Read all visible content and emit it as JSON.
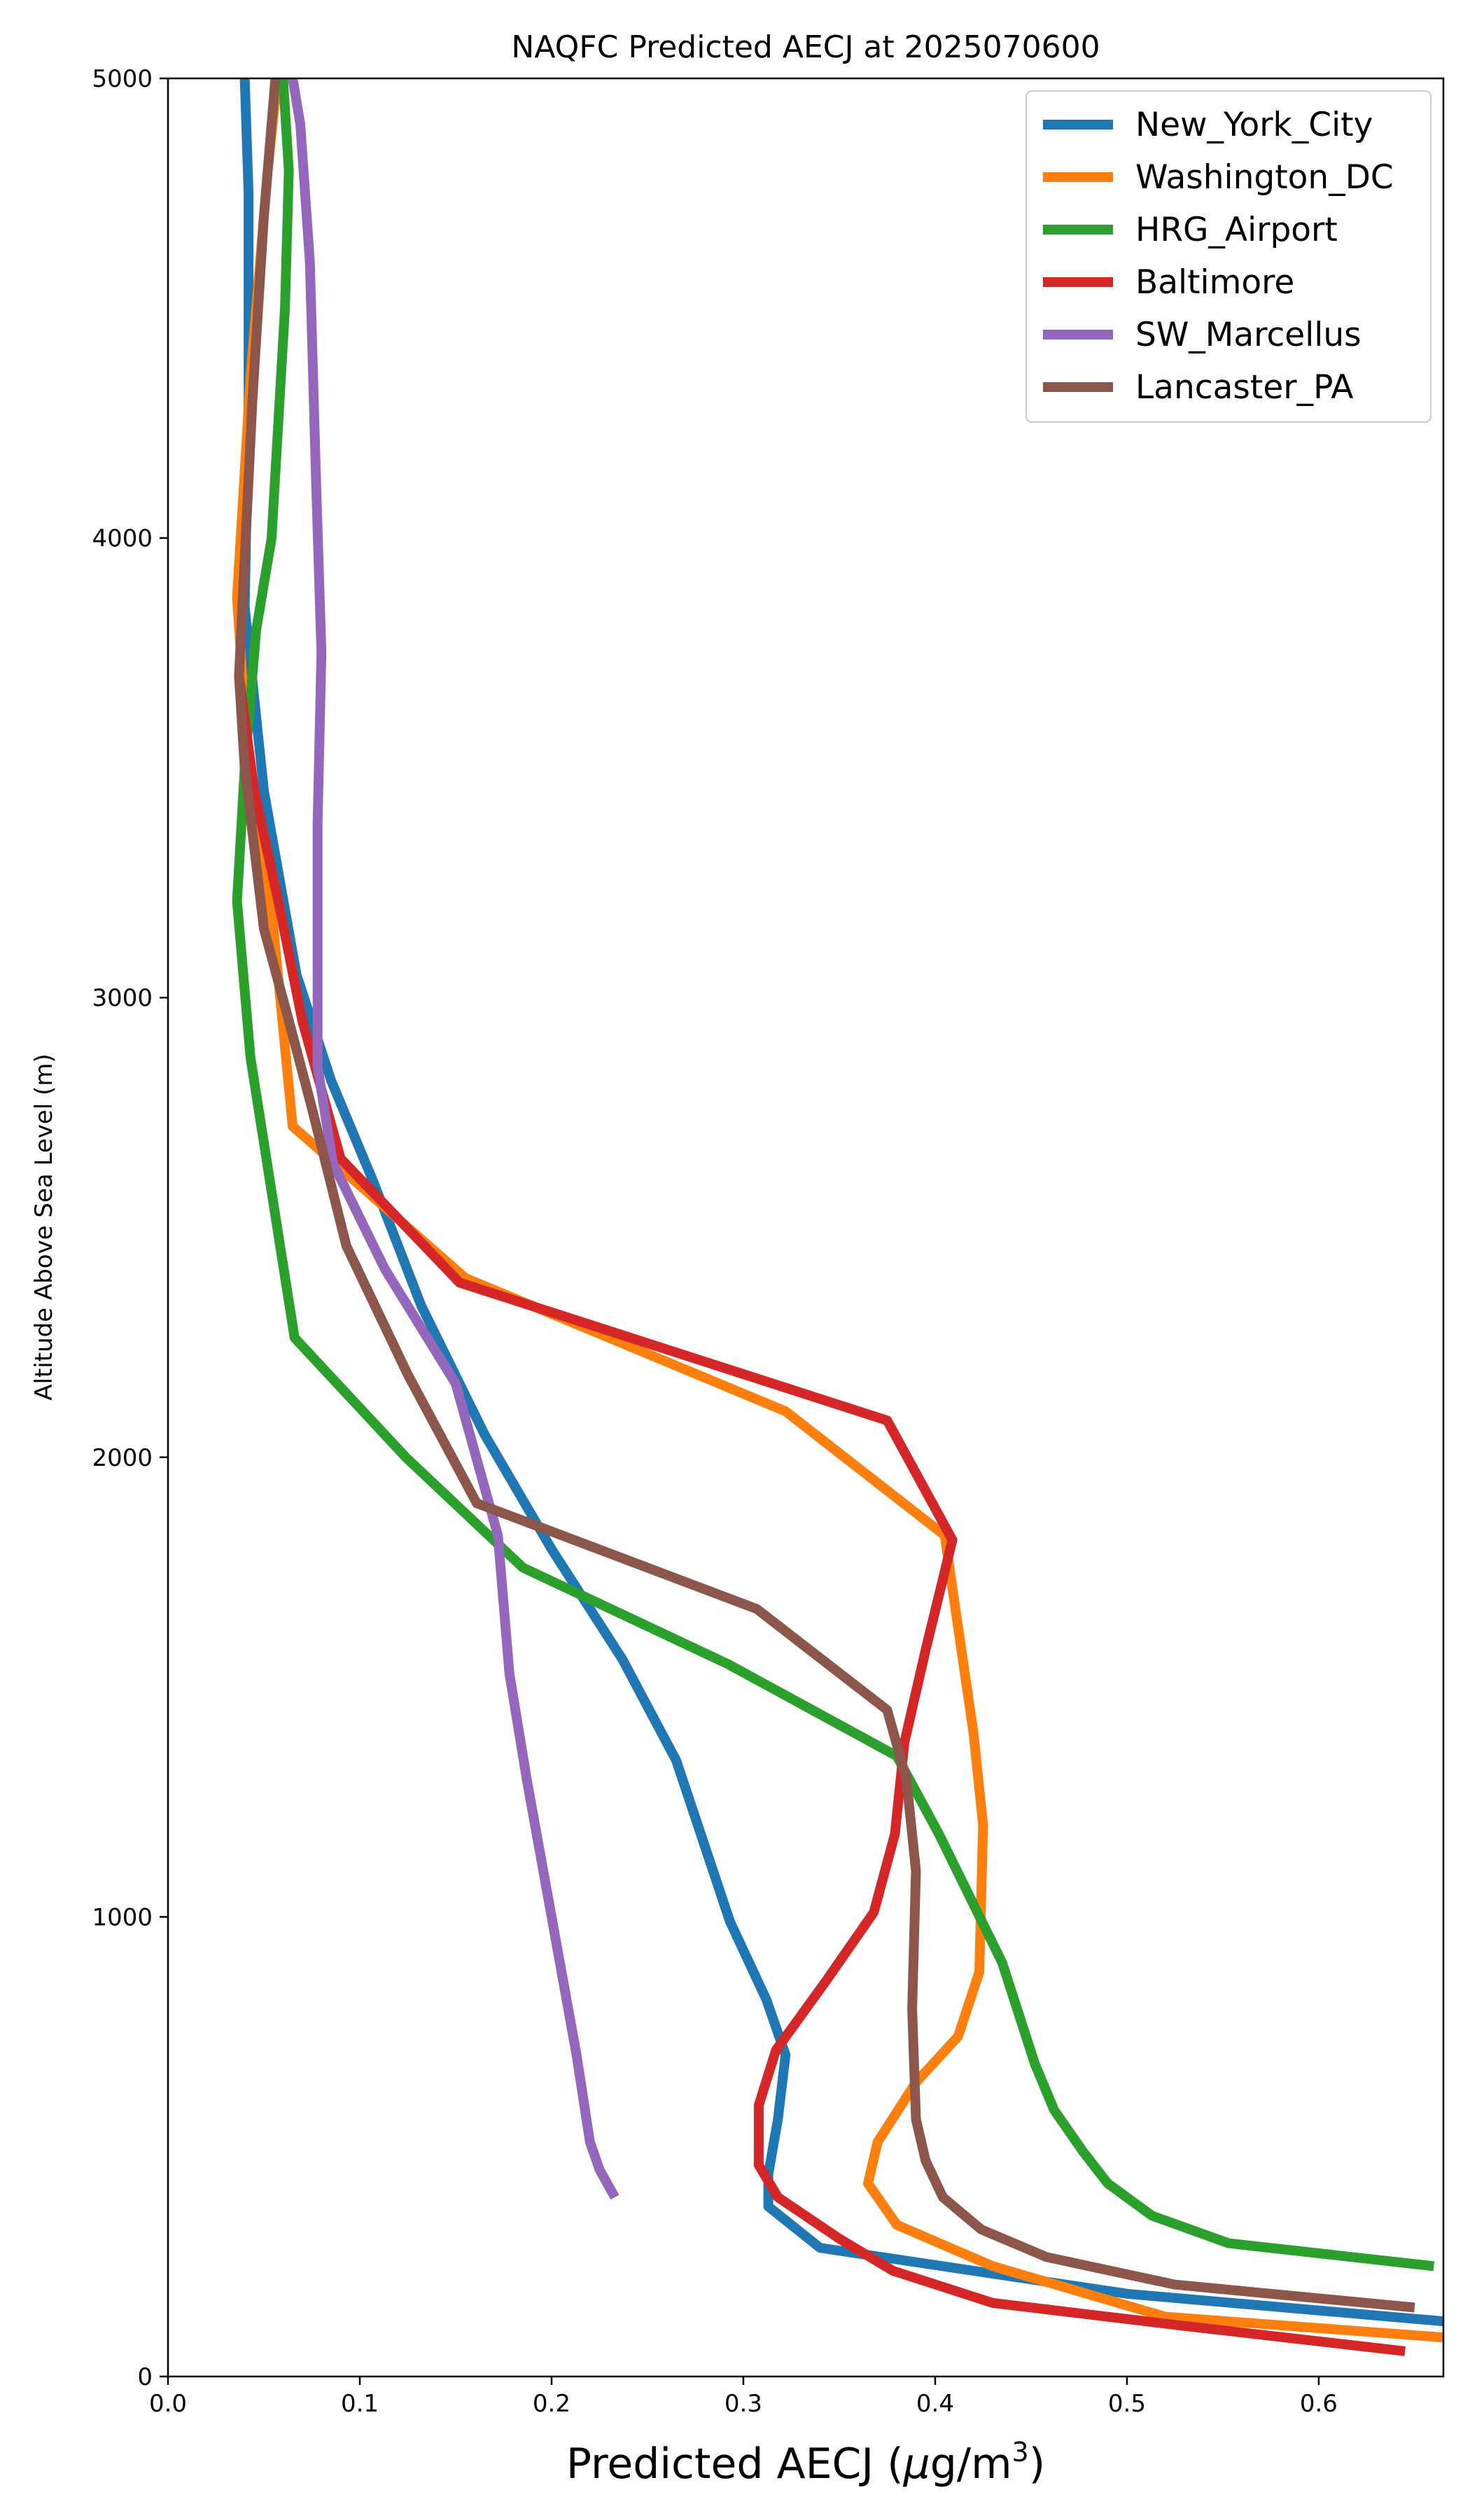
{
  "chart_data": {
    "type": "line",
    "title": "NAQFC Predicted AECJ at 2025070600",
    "xlabel": "Predicted AECJ (μg/m³)",
    "xlabel_parts": {
      "main": "Predicted AECJ (",
      "mu": "μ",
      "unit": "g/m",
      "sup": "3",
      "close": ")"
    },
    "ylabel": "Altitude Above Sea Level (m)",
    "xlim": [
      0,
      0.665
    ],
    "ylim": [
      0,
      5000
    ],
    "xticks": [
      0.0,
      0.1,
      0.2,
      0.3,
      0.4,
      0.5,
      0.6
    ],
    "xtick_labels": [
      "0.0",
      "0.1",
      "0.2",
      "0.3",
      "0.4",
      "0.5",
      "0.6"
    ],
    "yticks": [
      0,
      1000,
      2000,
      3000,
      4000,
      5000
    ],
    "ytick_labels": [
      "0",
      "1000",
      "2000",
      "3000",
      "4000",
      "5000"
    ],
    "grid": false,
    "legend_position": "top-right",
    "series": [
      {
        "name": "New_York_City",
        "color": "#1f77b4",
        "points": [
          [
            0.665,
            120
          ],
          [
            0.5,
            180
          ],
          [
            0.34,
            280
          ],
          [
            0.313,
            370
          ],
          [
            0.313,
            440
          ],
          [
            0.318,
            560
          ],
          [
            0.322,
            700
          ],
          [
            0.312,
            820
          ],
          [
            0.293,
            990
          ],
          [
            0.265,
            1340
          ],
          [
            0.237,
            1560
          ],
          [
            0.2,
            1800
          ],
          [
            0.165,
            2050
          ],
          [
            0.132,
            2330
          ],
          [
            0.107,
            2600
          ],
          [
            0.085,
            2820
          ],
          [
            0.067,
            3050
          ],
          [
            0.05,
            3450
          ],
          [
            0.04,
            3850
          ],
          [
            0.042,
            4300
          ],
          [
            0.042,
            4750
          ],
          [
            0.04,
            5000
          ]
        ]
      },
      {
        "name": "Washington_DC",
        "color": "#ff7f0e",
        "points": [
          [
            0.665,
            85
          ],
          [
            0.52,
            130
          ],
          [
            0.43,
            240
          ],
          [
            0.38,
            330
          ],
          [
            0.365,
            420
          ],
          [
            0.37,
            510
          ],
          [
            0.39,
            640
          ],
          [
            0.412,
            740
          ],
          [
            0.423,
            880
          ],
          [
            0.425,
            1200
          ],
          [
            0.42,
            1400
          ],
          [
            0.413,
            1600
          ],
          [
            0.405,
            1830
          ],
          [
            0.322,
            2100
          ],
          [
            0.155,
            2390
          ],
          [
            0.065,
            2720
          ],
          [
            0.055,
            3150
          ],
          [
            0.042,
            3500
          ],
          [
            0.036,
            3870
          ],
          [
            0.043,
            4350
          ],
          [
            0.052,
            4800
          ],
          [
            0.057,
            5000
          ]
        ]
      },
      {
        "name": "HRG_Airport",
        "color": "#2ca02c",
        "points": [
          [
            0.66,
            240
          ],
          [
            0.553,
            290
          ],
          [
            0.513,
            350
          ],
          [
            0.49,
            420
          ],
          [
            0.477,
            490
          ],
          [
            0.462,
            580
          ],
          [
            0.452,
            680
          ],
          [
            0.435,
            900
          ],
          [
            0.402,
            1180
          ],
          [
            0.38,
            1350
          ],
          [
            0.292,
            1550
          ],
          [
            0.185,
            1760
          ],
          [
            0.124,
            2000
          ],
          [
            0.066,
            2260
          ],
          [
            0.043,
            2870
          ],
          [
            0.036,
            3210
          ],
          [
            0.04,
            3500
          ],
          [
            0.046,
            3800
          ],
          [
            0.054,
            4000
          ],
          [
            0.061,
            4500
          ],
          [
            0.063,
            4800
          ],
          [
            0.06,
            5000
          ]
        ]
      },
      {
        "name": "Baltimore",
        "color": "#d62728",
        "points": [
          [
            0.645,
            55
          ],
          [
            0.53,
            110
          ],
          [
            0.43,
            160
          ],
          [
            0.378,
            230
          ],
          [
            0.35,
            300
          ],
          [
            0.318,
            390
          ],
          [
            0.308,
            460
          ],
          [
            0.308,
            590
          ],
          [
            0.317,
            710
          ],
          [
            0.343,
            860
          ],
          [
            0.368,
            1010
          ],
          [
            0.379,
            1180
          ],
          [
            0.384,
            1380
          ],
          [
            0.395,
            1580
          ],
          [
            0.409,
            1820
          ],
          [
            0.375,
            2080
          ],
          [
            0.152,
            2380
          ],
          [
            0.09,
            2650
          ],
          [
            0.07,
            2950
          ],
          [
            0.058,
            3200
          ],
          [
            0.045,
            3450
          ],
          [
            0.037,
            3700
          ]
        ]
      },
      {
        "name": "SW_Marcellus",
        "color": "#9467bd",
        "points": [
          [
            0.233,
            390
          ],
          [
            0.225,
            450
          ],
          [
            0.22,
            510
          ],
          [
            0.213,
            700
          ],
          [
            0.2,
            1000
          ],
          [
            0.187,
            1300
          ],
          [
            0.178,
            1530
          ],
          [
            0.172,
            1830
          ],
          [
            0.15,
            2160
          ],
          [
            0.113,
            2410
          ],
          [
            0.086,
            2640
          ],
          [
            0.078,
            2850
          ],
          [
            0.078,
            3040
          ],
          [
            0.078,
            3380
          ],
          [
            0.08,
            3750
          ],
          [
            0.077,
            4150
          ],
          [
            0.074,
            4600
          ],
          [
            0.069,
            4900
          ],
          [
            0.065,
            5000
          ]
        ]
      },
      {
        "name": "Lancaster_PA",
        "color": "#8c564b",
        "points": [
          [
            0.65,
            150
          ],
          [
            0.525,
            200
          ],
          [
            0.458,
            260
          ],
          [
            0.424,
            320
          ],
          [
            0.404,
            390
          ],
          [
            0.395,
            470
          ],
          [
            0.39,
            560
          ],
          [
            0.388,
            800
          ],
          [
            0.39,
            1100
          ],
          [
            0.385,
            1300
          ],
          [
            0.375,
            1450
          ],
          [
            0.307,
            1670
          ],
          [
            0.161,
            1900
          ],
          [
            0.125,
            2180
          ],
          [
            0.093,
            2460
          ],
          [
            0.075,
            2760
          ],
          [
            0.063,
            2950
          ],
          [
            0.05,
            3150
          ],
          [
            0.04,
            3500
          ],
          [
            0.037,
            3700
          ],
          [
            0.044,
            4300
          ],
          [
            0.05,
            4700
          ],
          [
            0.056,
            5000
          ]
        ]
      }
    ]
  }
}
